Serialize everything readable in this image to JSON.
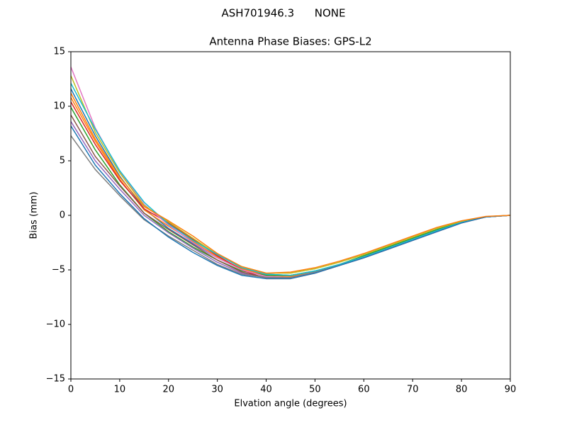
{
  "chart_data": {
    "type": "line",
    "suptitle": "ASH701946.3      NONE",
    "title": "Antenna Phase Biases: GPS-L2",
    "xlabel": "Elvation angle (degrees)",
    "ylabel": "Bias (mm)",
    "x": [
      0,
      5,
      10,
      15,
      20,
      25,
      30,
      35,
      40,
      45,
      50,
      55,
      60,
      65,
      70,
      75,
      80,
      85,
      90
    ],
    "xlim": [
      0,
      90
    ],
    "ylim": [
      -15,
      15
    ],
    "xticks": [
      0,
      10,
      20,
      30,
      40,
      50,
      60,
      70,
      80,
      90
    ],
    "yticks": [
      {
        "value": -15,
        "label": "−15"
      },
      {
        "value": -10,
        "label": "−10"
      },
      {
        "value": -5,
        "label": "−5"
      },
      0,
      5,
      10,
      15
    ],
    "series": [
      {
        "color": "#1f77b4",
        "values": [
          11.6,
          7.3,
          3.6,
          0.6,
          -1.2,
          -2.6,
          -3.9,
          -4.9,
          -5.4,
          -5.5,
          -5.1,
          -4.5,
          -3.8,
          -3.0,
          -2.2,
          -1.4,
          -0.65,
          -0.15,
          0
        ]
      },
      {
        "color": "#ff7f0e",
        "values": [
          10.8,
          6.8,
          3.3,
          0.5,
          -1.0,
          -2.4,
          -3.8,
          -4.9,
          -5.5,
          -5.6,
          -5.2,
          -4.5,
          -3.8,
          -3.0,
          -2.2,
          -1.4,
          -0.65,
          -0.15,
          0
        ]
      },
      {
        "color": "#2ca02c",
        "values": [
          9.9,
          6.0,
          2.8,
          0.2,
          -1.5,
          -2.9,
          -4.1,
          -5.1,
          -5.5,
          -5.5,
          -5.1,
          -4.5,
          -3.7,
          -2.9,
          -2.1,
          -1.3,
          -0.6,
          -0.12,
          0
        ]
      },
      {
        "color": "#d62728",
        "values": [
          10.4,
          6.5,
          3.2,
          0.6,
          -0.7,
          -2.2,
          -3.7,
          -5.0,
          -5.8,
          -5.8,
          -5.3,
          -4.6,
          -3.9,
          -3.1,
          -2.3,
          -1.5,
          -0.7,
          -0.15,
          0
        ]
      },
      {
        "color": "#9467bd",
        "values": [
          8.6,
          5.0,
          2.4,
          0.0,
          -1.6,
          -3.0,
          -4.3,
          -5.3,
          -5.7,
          -5.7,
          -5.2,
          -4.5,
          -3.8,
          -3.0,
          -2.2,
          -1.4,
          -0.65,
          -0.15,
          0
        ]
      },
      {
        "color": "#8c564b",
        "values": [
          9.2,
          5.4,
          2.7,
          0.2,
          -1.3,
          -2.7,
          -4.1,
          -5.2,
          -5.7,
          -5.7,
          -5.2,
          -4.6,
          -3.8,
          -3.0,
          -2.2,
          -1.4,
          -0.65,
          -0.15,
          0
        ]
      },
      {
        "color": "#e377c2",
        "values": [
          13.6,
          8.0,
          4.0,
          1.0,
          -0.9,
          -2.5,
          -3.9,
          -5.0,
          -5.6,
          -5.7,
          -5.2,
          -4.5,
          -3.8,
          -3.0,
          -2.2,
          -1.4,
          -0.65,
          -0.15,
          0
        ]
      },
      {
        "color": "#7f7f7f",
        "values": [
          7.3,
          4.2,
          1.8,
          -0.4,
          -1.9,
          -3.2,
          -4.5,
          -5.4,
          -5.7,
          -5.7,
          -5.2,
          -4.5,
          -3.8,
          -3.0,
          -2.2,
          -1.4,
          -0.65,
          -0.15,
          0
        ]
      },
      {
        "color": "#bcbd22",
        "values": [
          12.8,
          7.6,
          3.9,
          0.9,
          -0.6,
          -2.1,
          -3.6,
          -4.7,
          -5.3,
          -5.3,
          -4.9,
          -4.3,
          -3.6,
          -2.8,
          -2.0,
          -1.2,
          -0.55,
          -0.12,
          0
        ]
      },
      {
        "color": "#17becf",
        "values": [
          12.1,
          7.9,
          4.1,
          1.2,
          -0.8,
          -2.3,
          -3.6,
          -4.8,
          -5.4,
          -5.5,
          -5.1,
          -4.5,
          -3.8,
          -3.0,
          -2.2,
          -1.4,
          -0.65,
          -0.15,
          0
        ]
      },
      {
        "color": "#1f77b4",
        "values": [
          8.2,
          4.6,
          2.0,
          -0.3,
          -2.0,
          -3.4,
          -4.6,
          -5.5,
          -5.8,
          -5.8,
          -5.3,
          -4.6,
          -3.9,
          -3.1,
          -2.3,
          -1.5,
          -0.7,
          -0.15,
          0
        ]
      },
      {
        "color": "#ff7f0e",
        "values": [
          11.2,
          7.0,
          3.5,
          0.8,
          -0.5,
          -1.9,
          -3.5,
          -4.7,
          -5.3,
          -5.2,
          -4.8,
          -4.2,
          -3.5,
          -2.7,
          -1.9,
          -1.1,
          -0.5,
          -0.1,
          0
        ]
      }
    ]
  }
}
